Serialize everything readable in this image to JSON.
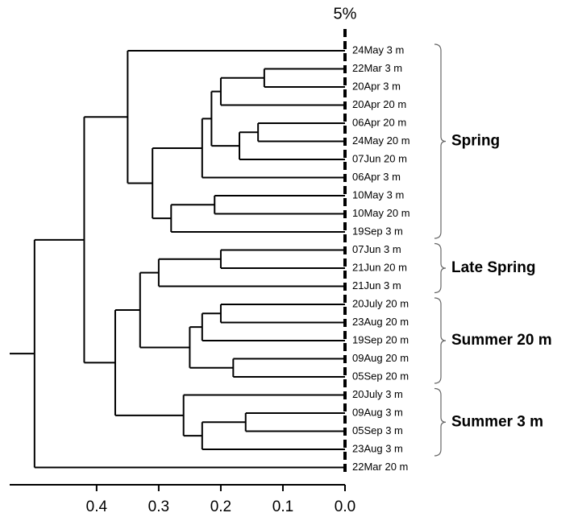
{
  "chart_data": {
    "type": "dendrogram",
    "title": "5%",
    "leaves": [
      "24May 3 m",
      "22Mar 3 m",
      "20Apr 3 m",
      "20Apr 20 m",
      "06Apr 20 m",
      "24May 20 m",
      "07Jun 20 m",
      "06Apr 3 m",
      "10May 3 m",
      "10May 20 m",
      "19Sep 3 m",
      "07Jun 3 m",
      "21Jun 20 m",
      "21Jun 3 m",
      "20July 20 m",
      "23Aug 20 m",
      "19Sep 20 m",
      "09Aug 20 m",
      "05Sep 20 m",
      "20July 3 m",
      "09Aug 3 m",
      "05Sep 3 m",
      "23Aug 3 m",
      "22Mar 20 m"
    ],
    "merges": [
      [
        1,
        2,
        0.13
      ],
      [
        24,
        3,
        0.2
      ],
      [
        4,
        5,
        0.14
      ],
      [
        26,
        6,
        0.17
      ],
      [
        25,
        27,
        0.215
      ],
      [
        28,
        7,
        0.23
      ],
      [
        8,
        9,
        0.21
      ],
      [
        30,
        10,
        0.28
      ],
      [
        29,
        31,
        0.31
      ],
      [
        0,
        32,
        0.35
      ],
      [
        11,
        12,
        0.2
      ],
      [
        34,
        13,
        0.3
      ],
      [
        14,
        15,
        0.2
      ],
      [
        36,
        16,
        0.23
      ],
      [
        17,
        18,
        0.18
      ],
      [
        37,
        38,
        0.25
      ],
      [
        35,
        39,
        0.33
      ],
      [
        20,
        21,
        0.16
      ],
      [
        41,
        22,
        0.23
      ],
      [
        19,
        42,
        0.26
      ],
      [
        40,
        43,
        0.37
      ],
      [
        33,
        44,
        0.42
      ],
      [
        45,
        23,
        0.5
      ]
    ],
    "groups": [
      {
        "label": "Spring",
        "start": 0,
        "end": 10
      },
      {
        "label": "Late Spring",
        "start": 11,
        "end": 13
      },
      {
        "label": "Summer 20 m",
        "start": 14,
        "end": 18
      },
      {
        "label": "Summer 3 m",
        "start": 19,
        "end": 22
      }
    ],
    "xlim": [
      0.54,
      0
    ],
    "xticks": [
      0.4,
      0.3,
      0.2,
      0.1,
      {
        "value": 0,
        "label": "0.0"
      }
    ],
    "color": "#000000"
  }
}
